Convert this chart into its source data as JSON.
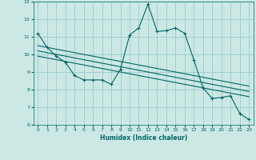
{
  "xlabel": "Humidex (Indice chaleur)",
  "bg_color": "#cce8e4",
  "grid_color": "#99cccc",
  "line_color": "#006666",
  "xlim": [
    -0.5,
    23.5
  ],
  "ylim": [
    6,
    13
  ],
  "yticks": [
    6,
    7,
    8,
    9,
    10,
    11,
    12,
    13
  ],
  "xticks": [
    0,
    1,
    2,
    3,
    4,
    5,
    6,
    7,
    8,
    9,
    10,
    11,
    12,
    13,
    14,
    15,
    16,
    17,
    18,
    19,
    20,
    21,
    22,
    23
  ],
  "series": [
    {
      "x": [
        0,
        1,
        2,
        3,
        4,
        5,
        6,
        7,
        8,
        9,
        10,
        11,
        12,
        13,
        14,
        15,
        16,
        17,
        18,
        19,
        20,
        21,
        22,
        23
      ],
      "y": [
        11.2,
        10.4,
        9.9,
        9.55,
        8.8,
        8.55,
        8.55,
        8.55,
        8.3,
        9.15,
        11.1,
        11.5,
        12.85,
        11.3,
        11.35,
        11.5,
        11.2,
        9.7,
        8.1,
        7.5,
        7.55,
        7.65,
        6.65,
        6.3
      ],
      "with_markers": true
    },
    {
      "x": [
        0,
        23
      ],
      "y": [
        10.5,
        8.2
      ],
      "with_markers": false
    },
    {
      "x": [
        0,
        23
      ],
      "y": [
        10.2,
        7.9
      ],
      "with_markers": false
    },
    {
      "x": [
        0,
        23
      ],
      "y": [
        9.9,
        7.6
      ],
      "with_markers": false
    }
  ]
}
